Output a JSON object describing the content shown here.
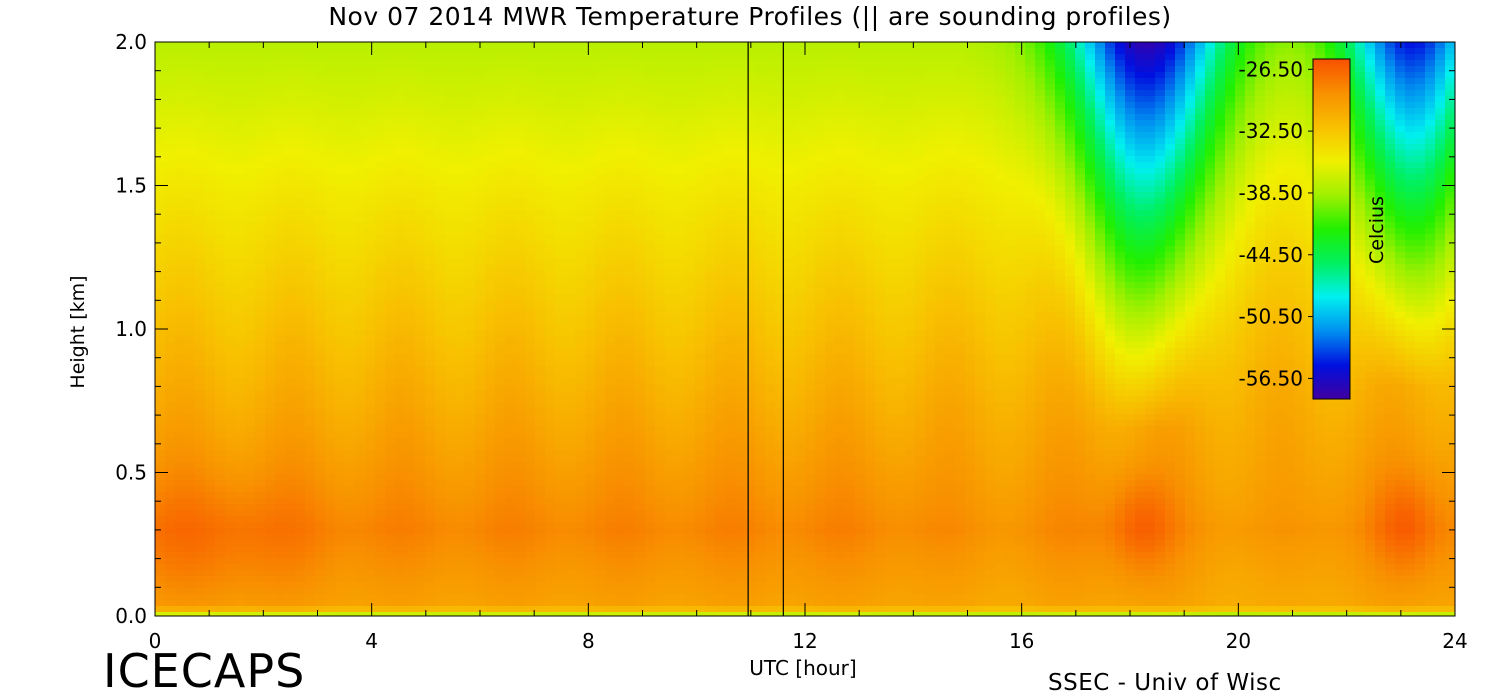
{
  "title": "Nov 07 2014 MWR Temperature Profiles (|| are sounding profiles)",
  "footer": {
    "left": "ICECAPS",
    "right": "SSEC - Univ of Wisc"
  },
  "colors": {
    "ramp": [
      "#4000a0",
      "#0010e0",
      "#0090f0",
      "#00f0f0",
      "#00f060",
      "#20f000",
      "#a0f000",
      "#f0f000",
      "#f8c000",
      "#f89000",
      "#f85000"
    ],
    "sounding_line": "#000000",
    "axis": "#000000"
  },
  "chart_data": {
    "type": "heatmap",
    "title": "Nov 07 2014 MWR Temperature Profiles (|| are sounding profiles)",
    "xlabel": "UTC [hour]",
    "ylabel": "Height [km]",
    "xlim": [
      0,
      24
    ],
    "ylim": [
      0,
      2
    ],
    "xticks": [
      0,
      4,
      8,
      12,
      16,
      20,
      24
    ],
    "xtick_labels": [
      "0",
      "4",
      "8",
      "12",
      "16",
      "20",
      "24"
    ],
    "yticks": [
      0,
      0.5,
      1,
      1.5,
      2
    ],
    "ytick_labels": [
      "0.0",
      "0.5",
      "1.0",
      "1.5",
      "2.0"
    ],
    "sounding_times": [
      10.95,
      11.6
    ],
    "colorbar": {
      "label": "Celcius",
      "range": [
        -58.5,
        -25.5
      ],
      "ticks": [
        -26.5,
        -32.5,
        -38.5,
        -44.5,
        -50.5,
        -56.5
      ],
      "tick_labels": [
        "-26.50",
        "-32.50",
        "-38.50",
        "-44.50",
        "-50.50",
        "-56.50"
      ]
    }
  }
}
